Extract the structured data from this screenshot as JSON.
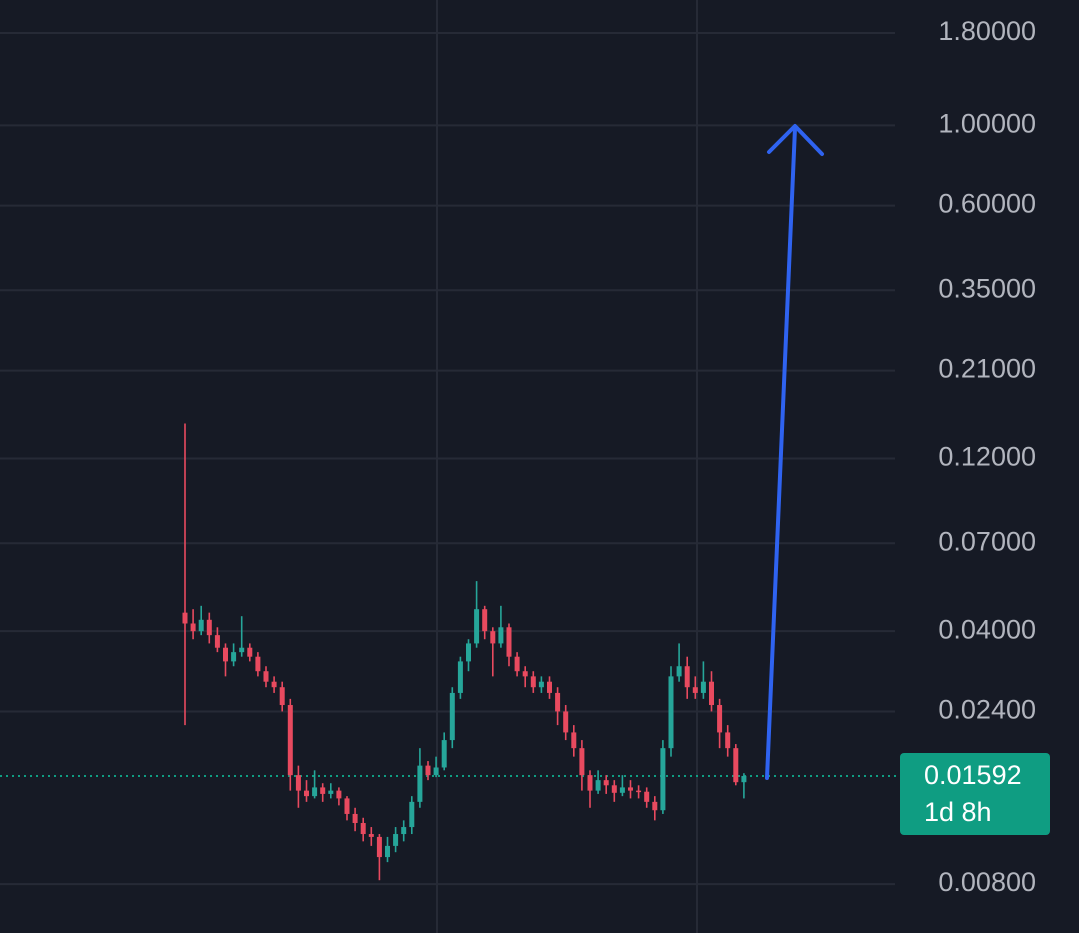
{
  "chart_data": {
    "type": "candlestick",
    "yscale": "log",
    "grid": true,
    "ylim": [
      0.00586,
      2.22
    ],
    "yticks": [
      {
        "value": 1.8,
        "label": "1.80000"
      },
      {
        "value": 1.0,
        "label": "1.00000"
      },
      {
        "value": 0.6,
        "label": "0.60000"
      },
      {
        "value": 0.35,
        "label": "0.35000"
      },
      {
        "value": 0.21,
        "label": "0.21000"
      },
      {
        "value": 0.12,
        "label": "0.12000"
      },
      {
        "value": 0.07,
        "label": "0.07000"
      },
      {
        "value": 0.04,
        "label": "0.04000"
      },
      {
        "value": 0.024,
        "label": "0.02400"
      },
      {
        "value": 0.008,
        "label": "0.00800"
      }
    ],
    "up_color": "#26a69a",
    "down_color": "#e84a5f",
    "open": [
      0.045,
      0.042,
      0.04,
      0.043,
      0.039,
      0.036,
      0.033,
      0.035,
      0.036,
      0.034,
      0.031,
      0.029,
      0.028,
      0.025,
      0.016,
      0.0145,
      0.014,
      0.0148,
      0.0142,
      0.0145,
      0.0138,
      0.0125,
      0.0118,
      0.011,
      0.0108,
      0.0095,
      0.0102,
      0.011,
      0.0115,
      0.0135,
      0.017,
      0.016,
      0.0168,
      0.02,
      0.027,
      0.033,
      0.037,
      0.046,
      0.04,
      0.037,
      0.041,
      0.034,
      0.031,
      0.03,
      0.028,
      0.029,
      0.027,
      0.024,
      0.021,
      0.019,
      0.016,
      0.0145,
      0.0155,
      0.015,
      0.0143,
      0.0148,
      0.0145,
      0.0144,
      0.0135,
      0.0128,
      0.019,
      0.03,
      0.032,
      0.028,
      0.027,
      0.029,
      0.025,
      0.021,
      0.019,
      0.0153
    ],
    "high": [
      0.15,
      0.046,
      0.047,
      0.045,
      0.041,
      0.037,
      0.037,
      0.044,
      0.037,
      0.035,
      0.032,
      0.03,
      0.029,
      0.026,
      0.017,
      0.0155,
      0.0165,
      0.0152,
      0.0152,
      0.0148,
      0.014,
      0.013,
      0.0122,
      0.0115,
      0.011,
      0.0108,
      0.0115,
      0.012,
      0.014,
      0.019,
      0.0175,
      0.018,
      0.021,
      0.028,
      0.034,
      0.038,
      0.055,
      0.047,
      0.041,
      0.047,
      0.042,
      0.035,
      0.032,
      0.031,
      0.03,
      0.03,
      0.028,
      0.025,
      0.022,
      0.02,
      0.0165,
      0.0165,
      0.016,
      0.0155,
      0.016,
      0.0155,
      0.015,
      0.0148,
      0.014,
      0.02,
      0.032,
      0.037,
      0.034,
      0.03,
      0.033,
      0.031,
      0.026,
      0.022,
      0.0195,
      0.0162
    ],
    "low": [
      0.022,
      0.038,
      0.039,
      0.037,
      0.035,
      0.03,
      0.032,
      0.034,
      0.033,
      0.03,
      0.028,
      0.027,
      0.024,
      0.0145,
      0.013,
      0.0135,
      0.0138,
      0.0135,
      0.0138,
      0.0132,
      0.012,
      0.0112,
      0.0105,
      0.0102,
      0.0082,
      0.0092,
      0.0098,
      0.0105,
      0.011,
      0.013,
      0.0155,
      0.0158,
      0.0165,
      0.019,
      0.026,
      0.031,
      0.036,
      0.038,
      0.03,
      0.036,
      0.032,
      0.03,
      0.028,
      0.027,
      0.027,
      0.026,
      0.022,
      0.02,
      0.018,
      0.0145,
      0.013,
      0.0142,
      0.0142,
      0.0135,
      0.014,
      0.0138,
      0.0138,
      0.013,
      0.012,
      0.0125,
      0.018,
      0.029,
      0.026,
      0.026,
      0.026,
      0.024,
      0.019,
      0.018,
      0.015,
      0.0138
    ],
    "close": [
      0.042,
      0.04,
      0.043,
      0.039,
      0.036,
      0.033,
      0.035,
      0.036,
      0.034,
      0.031,
      0.029,
      0.028,
      0.025,
      0.016,
      0.0145,
      0.014,
      0.0148,
      0.0142,
      0.0145,
      0.0138,
      0.0125,
      0.0118,
      0.011,
      0.0108,
      0.0095,
      0.0102,
      0.011,
      0.0115,
      0.0135,
      0.017,
      0.016,
      0.0168,
      0.02,
      0.027,
      0.033,
      0.037,
      0.046,
      0.04,
      0.037,
      0.041,
      0.034,
      0.031,
      0.03,
      0.028,
      0.029,
      0.027,
      0.024,
      0.021,
      0.019,
      0.016,
      0.0145,
      0.0155,
      0.015,
      0.0143,
      0.0148,
      0.0145,
      0.0144,
      0.0135,
      0.0128,
      0.019,
      0.03,
      0.032,
      0.028,
      0.027,
      0.029,
      0.025,
      0.021,
      0.019,
      0.0153,
      0.01592
    ],
    "last_price": 0.01592,
    "last_price_color": "#0f9d82",
    "countdown": "1d 8h"
  }
}
